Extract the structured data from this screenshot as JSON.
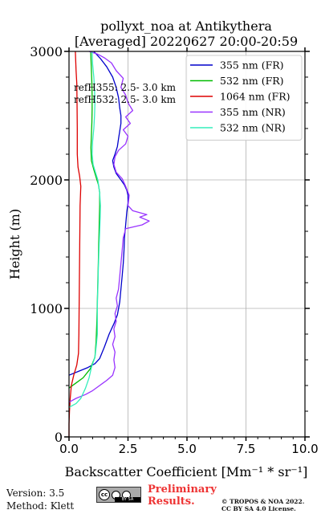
{
  "chart_data": {
    "type": "line",
    "title_line1": "pollyxt_noa at Antikythera",
    "title_line2": "[Averaged] 20220627 20:00-20:59",
    "xlabel": "Backscatter Coefficient [Mm⁻¹ * sr⁻¹]",
    "ylabel": "Height (m)",
    "xlim": [
      0,
      10
    ],
    "ylim": [
      0,
      3000
    ],
    "xticks": [
      "0.0",
      "2.5",
      "5.0",
      "7.5",
      "10.0"
    ],
    "yticks": [
      "0",
      "1000",
      "2000",
      "3000"
    ],
    "grid": true,
    "legend_position": "top-right",
    "annotations": [
      "refH355:  2.5- 3.0 km",
      "refH532:  2.5- 3.0 km"
    ],
    "series": [
      {
        "name": "355 nm (FR)",
        "color": "#0000cc",
        "points": [
          [
            0.0,
            480
          ],
          [
            0.4,
            510
          ],
          [
            0.8,
            540
          ],
          [
            1.1,
            570
          ],
          [
            1.3,
            610
          ],
          [
            1.5,
            700
          ],
          [
            1.7,
            800
          ],
          [
            1.9,
            880
          ],
          [
            2.05,
            950
          ],
          [
            2.15,
            1050
          ],
          [
            2.2,
            1150
          ],
          [
            2.25,
            1250
          ],
          [
            2.3,
            1350
          ],
          [
            2.33,
            1450
          ],
          [
            2.35,
            1550
          ],
          [
            2.4,
            1650
          ],
          [
            2.45,
            1750
          ],
          [
            2.5,
            1820
          ],
          [
            2.5,
            1880
          ],
          [
            2.45,
            1920
          ],
          [
            2.35,
            1960
          ],
          [
            2.2,
            2000
          ],
          [
            2.0,
            2050
          ],
          [
            1.9,
            2100
          ],
          [
            1.85,
            2150
          ],
          [
            1.95,
            2200
          ],
          [
            2.05,
            2260
          ],
          [
            2.1,
            2320
          ],
          [
            2.15,
            2380
          ],
          [
            2.2,
            2440
          ],
          [
            2.2,
            2500
          ],
          [
            2.15,
            2560
          ],
          [
            2.1,
            2640
          ],
          [
            2.0,
            2720
          ],
          [
            1.85,
            2800
          ],
          [
            1.6,
            2880
          ],
          [
            1.35,
            2940
          ],
          [
            1.15,
            2980
          ],
          [
            1.05,
            3000
          ]
        ]
      },
      {
        "name": "532 nm (FR)",
        "color": "#00bb00",
        "points": [
          [
            0.0,
            380
          ],
          [
            0.3,
            420
          ],
          [
            0.6,
            460
          ],
          [
            0.9,
            530
          ],
          [
            1.1,
            620
          ],
          [
            1.15,
            750
          ],
          [
            1.18,
            900
          ],
          [
            1.2,
            1050
          ],
          [
            1.22,
            1200
          ],
          [
            1.24,
            1350
          ],
          [
            1.26,
            1500
          ],
          [
            1.28,
            1650
          ],
          [
            1.3,
            1800
          ],
          [
            1.3,
            1900
          ],
          [
            1.25,
            1960
          ],
          [
            1.15,
            2020
          ],
          [
            1.05,
            2080
          ],
          [
            0.95,
            2150
          ],
          [
            0.93,
            2250
          ],
          [
            0.95,
            2350
          ],
          [
            0.97,
            2450
          ],
          [
            0.98,
            2550
          ],
          [
            0.98,
            2650
          ],
          [
            0.97,
            2750
          ],
          [
            0.95,
            2850
          ],
          [
            0.93,
            2950
          ],
          [
            0.92,
            3000
          ]
        ]
      },
      {
        "name": "1064 nm (FR)",
        "color": "#dd0000",
        "points": [
          [
            0.0,
            0
          ],
          [
            0.0,
            100
          ],
          [
            0.02,
            200
          ],
          [
            0.05,
            300
          ],
          [
            0.1,
            400
          ],
          [
            0.2,
            480
          ],
          [
            0.33,
            560
          ],
          [
            0.4,
            650
          ],
          [
            0.42,
            800
          ],
          [
            0.43,
            1000
          ],
          [
            0.44,
            1200
          ],
          [
            0.45,
            1400
          ],
          [
            0.46,
            1600
          ],
          [
            0.47,
            1800
          ],
          [
            0.5,
            1950
          ],
          [
            0.45,
            2030
          ],
          [
            0.38,
            2100
          ],
          [
            0.35,
            2200
          ],
          [
            0.35,
            2400
          ],
          [
            0.34,
            2600
          ],
          [
            0.33,
            2750
          ],
          [
            0.3,
            2850
          ],
          [
            0.28,
            2950
          ],
          [
            0.27,
            3000
          ]
        ]
      },
      {
        "name": "355 nm (NR)",
        "color": "#9933ff",
        "points": [
          [
            0.0,
            270
          ],
          [
            0.3,
            300
          ],
          [
            0.7,
            330
          ],
          [
            1.0,
            360
          ],
          [
            1.3,
            400
          ],
          [
            1.6,
            440
          ],
          [
            1.85,
            480
          ],
          [
            1.95,
            540
          ],
          [
            1.9,
            600
          ],
          [
            1.95,
            660
          ],
          [
            1.85,
            720
          ],
          [
            1.95,
            780
          ],
          [
            1.9,
            840
          ],
          [
            2.0,
            900
          ],
          [
            1.95,
            960
          ],
          [
            2.05,
            1020
          ],
          [
            2.0,
            1080
          ],
          [
            2.1,
            1150
          ],
          [
            2.15,
            1250
          ],
          [
            2.2,
            1350
          ],
          [
            2.25,
            1450
          ],
          [
            2.3,
            1550
          ],
          [
            2.4,
            1620
          ],
          [
            3.1,
            1650
          ],
          [
            3.4,
            1680
          ],
          [
            3.0,
            1710
          ],
          [
            3.3,
            1730
          ],
          [
            2.7,
            1760
          ],
          [
            2.5,
            1800
          ],
          [
            2.55,
            1880
          ],
          [
            2.4,
            1950
          ],
          [
            2.25,
            2010
          ],
          [
            2.0,
            2060
          ],
          [
            1.9,
            2120
          ],
          [
            1.95,
            2180
          ],
          [
            2.1,
            2230
          ],
          [
            2.4,
            2280
          ],
          [
            2.5,
            2340
          ],
          [
            2.3,
            2390
          ],
          [
            2.6,
            2440
          ],
          [
            2.4,
            2490
          ],
          [
            2.7,
            2540
          ],
          [
            2.5,
            2600
          ],
          [
            2.4,
            2660
          ],
          [
            2.2,
            2720
          ],
          [
            2.3,
            2790
          ],
          [
            2.0,
            2850
          ],
          [
            1.8,
            2910
          ],
          [
            1.5,
            2950
          ],
          [
            1.2,
            2980
          ],
          [
            0.85,
            3000
          ]
        ]
      },
      {
        "name": "532 nm (NR)",
        "color": "#33eebb",
        "points": [
          [
            0.0,
            230
          ],
          [
            0.3,
            260
          ],
          [
            0.5,
            300
          ],
          [
            0.7,
            380
          ],
          [
            0.85,
            460
          ],
          [
            0.95,
            540
          ],
          [
            1.1,
            620
          ],
          [
            1.15,
            700
          ],
          [
            1.2,
            800
          ],
          [
            1.2,
            900
          ],
          [
            1.2,
            1000
          ],
          [
            1.21,
            1100
          ],
          [
            1.23,
            1200
          ],
          [
            1.24,
            1300
          ],
          [
            1.26,
            1400
          ],
          [
            1.28,
            1500
          ],
          [
            1.3,
            1600
          ],
          [
            1.32,
            1700
          ],
          [
            1.33,
            1800
          ],
          [
            1.3,
            1900
          ],
          [
            1.22,
            2000
          ],
          [
            1.12,
            2060
          ],
          [
            1.02,
            2120
          ],
          [
            0.98,
            2200
          ],
          [
            1.0,
            2300
          ],
          [
            1.05,
            2400
          ],
          [
            1.08,
            2500
          ],
          [
            1.1,
            2600
          ],
          [
            1.08,
            2700
          ],
          [
            1.05,
            2800
          ],
          [
            1.0,
            2900
          ],
          [
            0.98,
            3000
          ]
        ]
      }
    ]
  },
  "footer": {
    "version": "Version: 3.5",
    "method": "Method: Klett",
    "preliminary_line1": "Preliminary",
    "preliminary_line2": "Results.",
    "copyright_line1": "© TROPOS & NOA 2022.",
    "copyright_line2": "CC BY SA 4.0 License.",
    "cc_badge_text": "BY   SA"
  }
}
